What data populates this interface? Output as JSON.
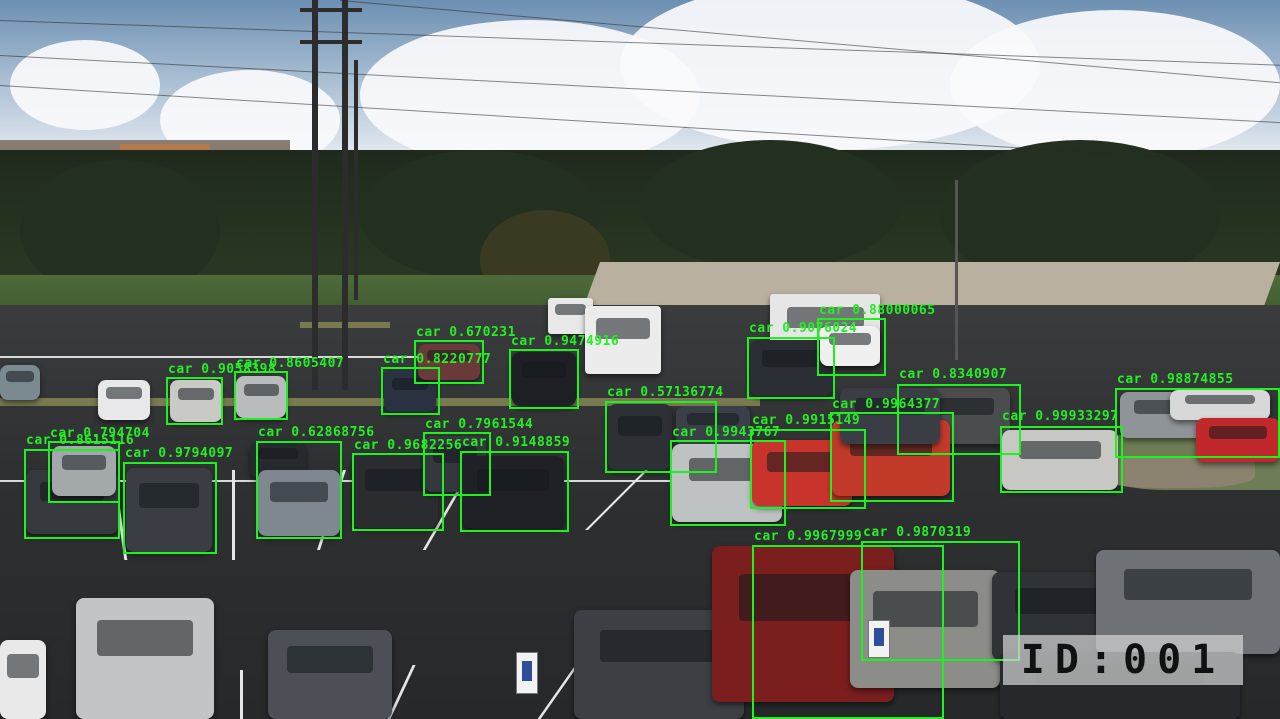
{
  "overlay": {
    "box_color": "#1cf21c",
    "id_tag": "ID:001"
  },
  "detections": [
    {
      "label": "car 0.670231"
    },
    {
      "label": "car 0.9474916"
    },
    {
      "label": "car 0.9076024"
    },
    {
      "label": "car 0.88000065"
    },
    {
      "label": "car 0.8220777"
    },
    {
      "label": "car 0.8605407"
    },
    {
      "label": "car 0.9058398"
    },
    {
      "label": "car 0.8340907"
    },
    {
      "label": "car 0.98874855"
    },
    {
      "label": "car 0.57136774"
    },
    {
      "label": "car 0.9964377"
    },
    {
      "label": "car 0.99933297"
    },
    {
      "label": "car 0.9915149"
    },
    {
      "label": "car 0.9943767"
    },
    {
      "label": "car 0.7961544"
    },
    {
      "label": "car 0.9682256"
    },
    {
      "label": "car 0.9148859"
    },
    {
      "label": "car 0.62868756"
    },
    {
      "label": "car 0.794704"
    },
    {
      "label": "car 0.8615116"
    },
    {
      "label": "car 0.9794097"
    },
    {
      "label": "car 0.9967999"
    },
    {
      "label": "car 0.9870319"
    }
  ]
}
